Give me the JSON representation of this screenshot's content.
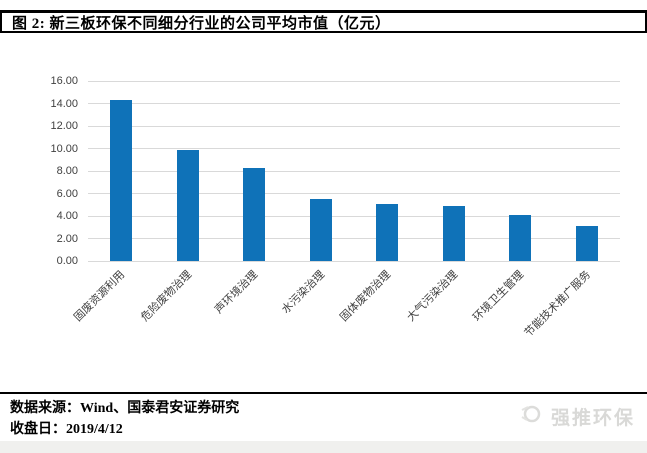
{
  "figure": {
    "title": "图 2:  新三板环保不同细分行业的公司平均市值（亿元）"
  },
  "chart_data": {
    "type": "bar",
    "title": "新三板环保不同细分行业的公司平均市值（亿元）",
    "categories": [
      "固废资源利用",
      "危险废物治理",
      "声环境治理",
      "水污染治理",
      "固体废物治理",
      "大气污染治理",
      "环境卫生管理",
      "节能技术推广服务"
    ],
    "values": [
      14.3,
      9.9,
      8.3,
      5.5,
      5.1,
      4.9,
      4.1,
      3.1
    ],
    "xlabel": "",
    "ylabel": "",
    "ylim": [
      0,
      16
    ],
    "ytick_labels": [
      "16.00",
      "14.00",
      "12.00",
      "10.00",
      "8.00",
      "6.00",
      "4.00",
      "2.00",
      "0.00"
    ],
    "grid": true,
    "legend": false,
    "bar_color": "#0f72b8",
    "gridline_color": "#d9d9d9",
    "tick_label_color": "#404040",
    "category_label_rotation_deg": 45
  },
  "footer": {
    "source_label": "数据来源：Wind、国泰君安证券研究",
    "date_label": "收盘日：2019/4/12",
    "watermark_label": "强推环保"
  }
}
